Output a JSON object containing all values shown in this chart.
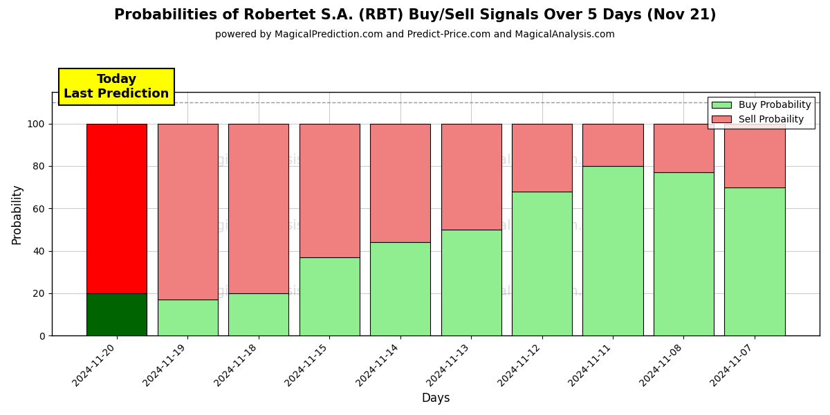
{
  "title": "Probabilities of Robertet S.A. (RBT) Buy/Sell Signals Over 5 Days (Nov 21)",
  "subtitle": "powered by MagicalPrediction.com and Predict-Price.com and MagicalAnalysis.com",
  "xlabel": "Days",
  "ylabel": "Probability",
  "dates": [
    "2024-11-20",
    "2024-11-19",
    "2024-11-18",
    "2024-11-15",
    "2024-11-14",
    "2024-11-13",
    "2024-11-12",
    "2024-11-11",
    "2024-11-08",
    "2024-11-07"
  ],
  "buy_values": [
    20,
    17,
    20,
    37,
    44,
    50,
    68,
    80,
    77,
    70
  ],
  "sell_values": [
    80,
    83,
    80,
    63,
    56,
    50,
    32,
    20,
    23,
    30
  ],
  "today_buy": 20,
  "buy_color_today": "#006400",
  "sell_color_today": "#ff0000",
  "buy_color_normal": "#90EE90",
  "sell_color_normal": "#F08080",
  "today_label": "Today\nLast Prediction",
  "today_label_bg": "#ffff00",
  "legend_buy_label": "Buy Probability",
  "legend_sell_label": "Sell Probaility",
  "ylim": [
    0,
    115
  ],
  "dashed_line_y": 110,
  "background_color": "#ffffff",
  "grid_color": "#cccccc",
  "bar_width": 0.85
}
